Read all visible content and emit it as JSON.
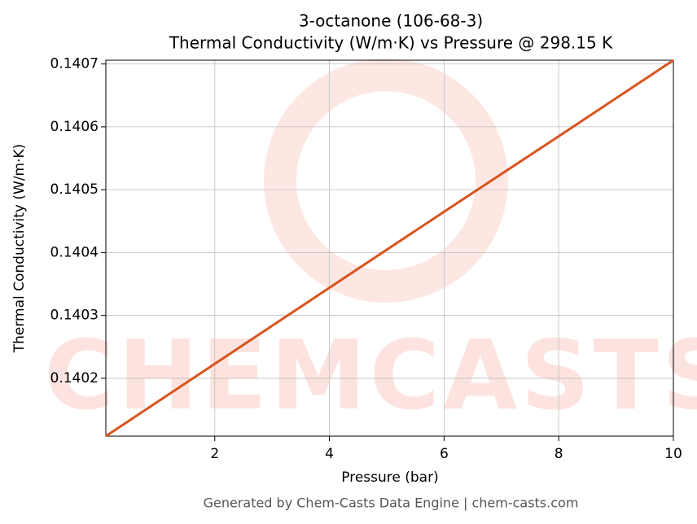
{
  "chart_data": {
    "type": "line",
    "title": [
      "3-octanone (106-68-3)",
      "Thermal Conductivity (W/m·K) vs Pressure @ 298.15 K"
    ],
    "x_label": "Pressure (bar)",
    "y_label": "Thermal Conductivity (W/m·K)",
    "x": [
      0.1,
      2,
      4,
      6,
      8,
      10
    ],
    "series": [
      {
        "name": "Thermal Conductivity",
        "color": "#d9541e",
        "values": [
          0.140108,
          0.140223,
          0.140344,
          0.140465,
          0.140585,
          0.140706
        ]
      }
    ],
    "xlim": [
      0.1,
      10
    ],
    "xticks": [
      2,
      4,
      6,
      8,
      10
    ],
    "ylim": [
      0.140108,
      0.140706
    ],
    "yticks": [
      0.1402,
      0.1403,
      0.1404,
      0.1405,
      0.1406,
      0.1407
    ],
    "grid": true,
    "watermark": "CHEMCASTS",
    "footer": "Generated by Chem-Casts Data Engine | chem-casts.com"
  }
}
